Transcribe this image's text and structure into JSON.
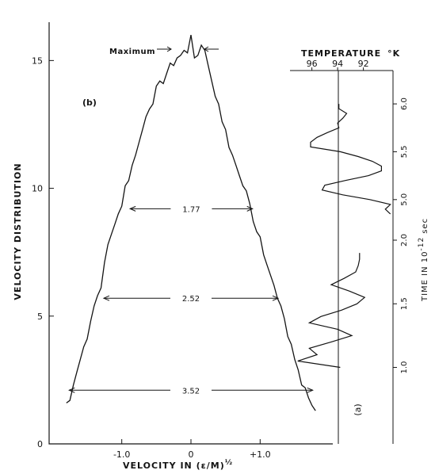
{
  "chart_data": [
    {
      "panel": "(b)",
      "type": "line",
      "xlabel": "VELOCITY  IN  (ε/M)½",
      "ylabel": "VELOCITY  DISTRIBUTION",
      "xlim": [
        -2.05,
        2.05
      ],
      "ylim": [
        0,
        16.5
      ],
      "x_ticks": [
        {
          "value": -1.0,
          "label": "-1.0"
        },
        {
          "value": 0,
          "label": "0"
        },
        {
          "value": 1.0,
          "label": "+1.0"
        }
      ],
      "y_ticks": [
        {
          "value": 0,
          "label": "0"
        },
        {
          "value": 5,
          "label": "5"
        },
        {
          "value": 10,
          "label": "10"
        },
        {
          "value": 15,
          "label": "15"
        }
      ],
      "series": [
        {
          "x": [
            -1.8,
            -1.75,
            -1.7,
            -1.65,
            -1.6,
            -1.55,
            -1.5,
            -1.45,
            -1.4,
            -1.35,
            -1.3,
            -1.25,
            -1.2,
            -1.15,
            -1.1,
            -1.05,
            -1.0,
            -0.95,
            -0.9,
            -0.85,
            -0.8,
            -0.75,
            -0.7,
            -0.65,
            -0.6,
            -0.55,
            -0.5,
            -0.45,
            -0.4,
            -0.35,
            -0.3,
            -0.25,
            -0.2,
            -0.15,
            -0.1,
            -0.05,
            0.0,
            0.05,
            0.1,
            0.15,
            0.2,
            0.25,
            0.3,
            0.35,
            0.4,
            0.45,
            0.5,
            0.55,
            0.6,
            0.65,
            0.7,
            0.75,
            0.8,
            0.85,
            0.9,
            0.95,
            1.0,
            1.05,
            1.1,
            1.15,
            1.2,
            1.25,
            1.3,
            1.35,
            1.4,
            1.45,
            1.5,
            1.55,
            1.6,
            1.65,
            1.7,
            1.75,
            1.8
          ],
          "values": [
            1.6,
            1.7,
            2.3,
            2.8,
            3.3,
            3.8,
            4.1,
            4.8,
            5.4,
            5.8,
            6.1,
            7.1,
            7.8,
            8.2,
            8.6,
            9.0,
            9.3,
            10.1,
            10.3,
            10.9,
            11.3,
            11.8,
            12.3,
            12.8,
            13.1,
            13.3,
            14.0,
            14.2,
            14.1,
            14.5,
            14.9,
            14.8,
            15.1,
            15.2,
            15.4,
            15.3,
            16.0,
            15.1,
            15.2,
            15.6,
            15.4,
            14.8,
            14.2,
            13.6,
            13.3,
            12.6,
            12.3,
            11.6,
            11.3,
            10.9,
            10.5,
            10.1,
            9.9,
            9.4,
            8.7,
            8.3,
            8.1,
            7.4,
            7.0,
            6.6,
            6.2,
            5.7,
            5.4,
            4.9,
            4.2,
            3.9,
            3.3,
            2.9,
            2.3,
            2.2,
            1.8,
            1.5,
            1.3
          ]
        }
      ],
      "annotations": [
        {
          "label": "Maximum",
          "y": 15.4
        },
        {
          "label": "1.77",
          "y": 9.2,
          "x_from": -0.88,
          "x_to": 0.89
        },
        {
          "label": "2.52",
          "y": 5.7,
          "x_from": -1.26,
          "x_to": 1.26
        },
        {
          "label": "3.52",
          "y": 2.1,
          "x_from": -1.76,
          "x_to": 1.76
        }
      ]
    },
    {
      "panel": "(a)",
      "type": "line",
      "title": "TEMPERATURE  °K",
      "ylabel": "TIME  IN  10⁻¹²  sec",
      "x_ticks": [
        {
          "value": 96,
          "label": "96"
        },
        {
          "value": 94,
          "label": "94"
        },
        {
          "value": 92,
          "label": "92"
        }
      ],
      "xlim": [
        97.7,
        89.7
      ],
      "reference_line": 94.0,
      "segments": [
        {
          "ylim": [
            0.86,
            2.0
          ],
          "y_ticks": [
            {
              "value": 1.0,
              "label": "1.0"
            },
            {
              "value": 1.5,
              "label": "1.5"
            },
            {
              "value": 2.0,
              "label": "2.0"
            }
          ],
          "time": [
            1.0,
            1.05,
            1.1,
            1.15,
            1.2,
            1.25,
            1.3,
            1.35,
            1.4,
            1.45,
            1.5,
            1.55,
            1.6,
            1.65,
            1.7,
            1.75,
            1.8,
            1.85,
            1.9
          ],
          "temperature": [
            93.8,
            97.1,
            95.6,
            96.2,
            94.5,
            92.9,
            94.0,
            96.2,
            95.3,
            93.7,
            92.5,
            91.9,
            93.1,
            94.5,
            93.5,
            92.6,
            92.4,
            92.3,
            92.3
          ]
        },
        {
          "ylim": [
            4.75,
            6.1
          ],
          "y_ticks": [
            {
              "value": 5.0,
              "label": "5.0"
            },
            {
              "value": 5.5,
              "label": "5.5"
            },
            {
              "value": 6.0,
              "label": "6.0"
            }
          ],
          "time": [
            4.85,
            4.9,
            4.95,
            5.0,
            5.05,
            5.1,
            5.15,
            5.2,
            5.25,
            5.3,
            5.35,
            5.4,
            5.45,
            5.5,
            5.55,
            5.6,
            5.65,
            5.7,
            5.75,
            5.8,
            5.85,
            5.9,
            5.95,
            6.0
          ],
          "temperature": [
            89.9,
            90.3,
            89.9,
            91.5,
            93.6,
            95.2,
            95.0,
            93.4,
            91.6,
            90.6,
            90.6,
            91.3,
            92.4,
            93.8,
            96.1,
            96.1,
            95.6,
            94.8,
            93.9,
            94.0,
            93.6,
            93.3,
            93.9,
            93.9
          ]
        }
      ]
    }
  ],
  "labels": {
    "panel_b": "(b)",
    "panel_a": "(a)",
    "maximum": "Maximum",
    "w1": "1.77",
    "w2": "2.52",
    "w3": "3.52",
    "xlabel": "VELOCITY  IN  (ε/M)",
    "xlabel_exp": "½",
    "ylabel": "VELOCITY  DISTRIBUTION",
    "temp_title": "TEMPERATURE",
    "temp_unit": "°K",
    "time_label": "TIME  IN  10",
    "time_exp": "-12",
    "time_unit": "sec"
  }
}
